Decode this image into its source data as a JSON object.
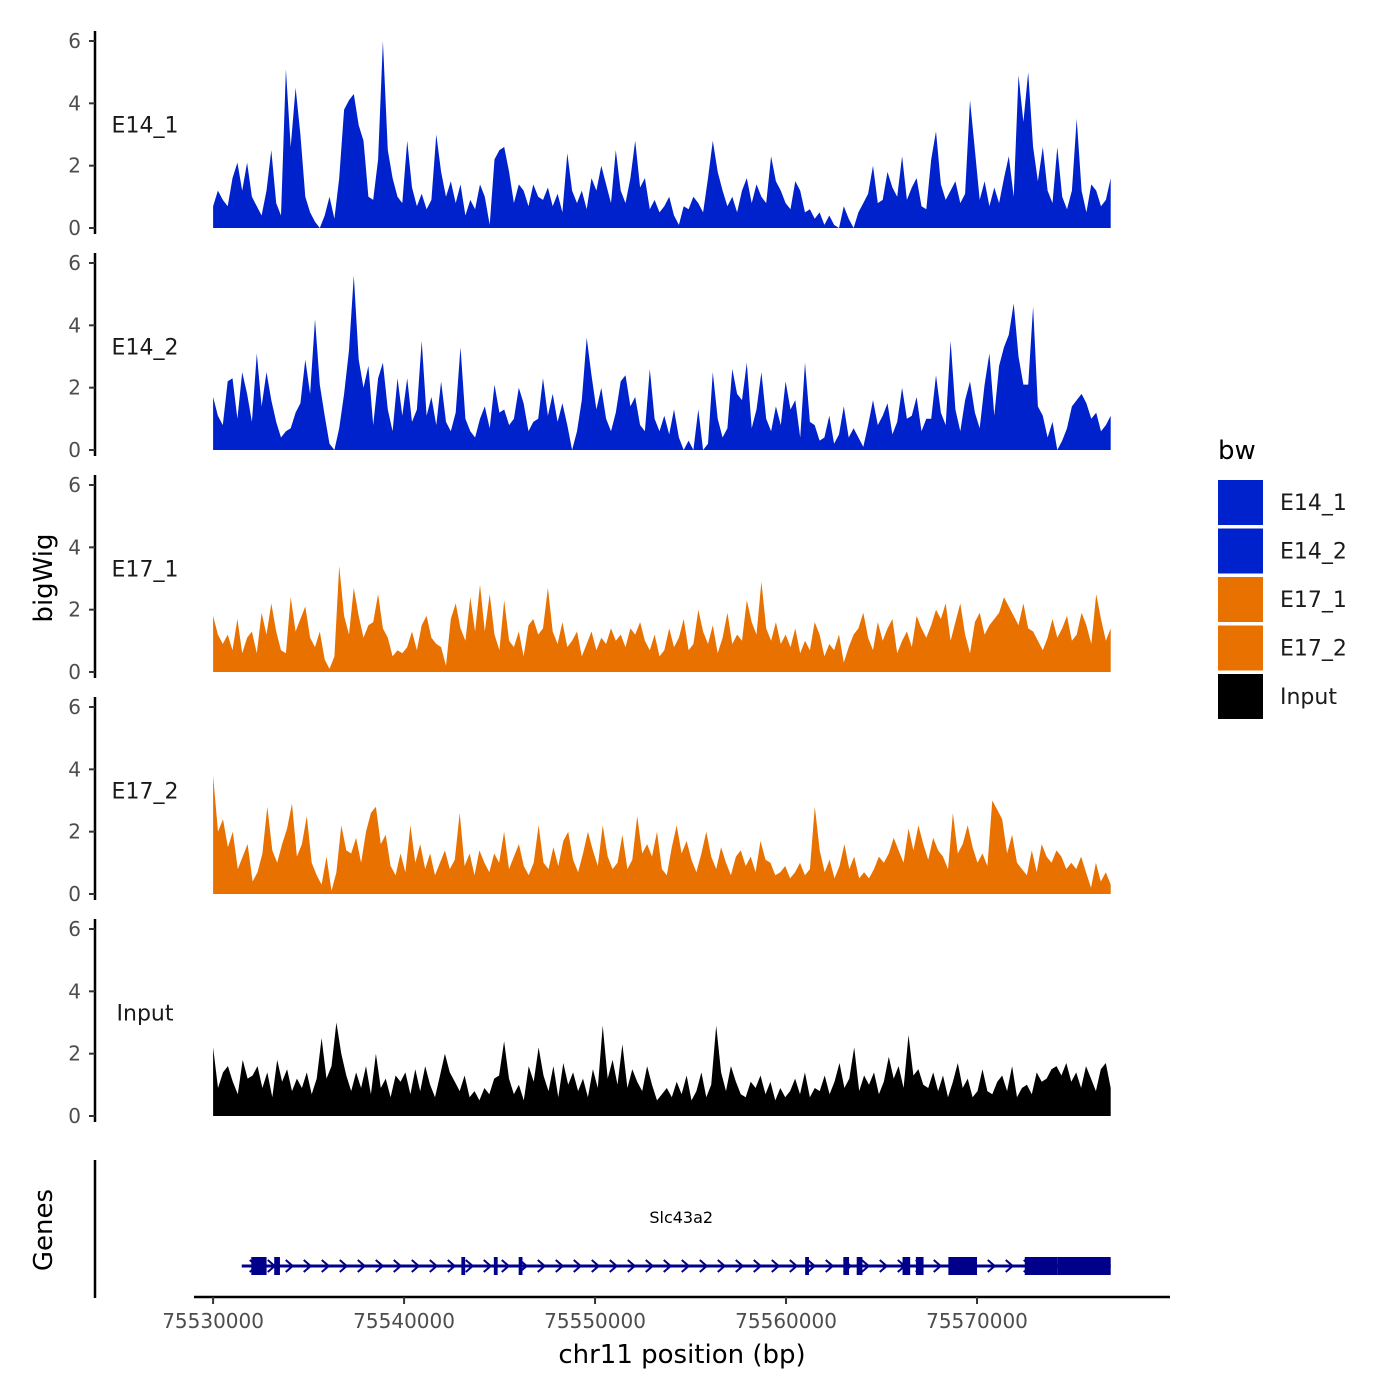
{
  "chart_data": {
    "type": "area",
    "ylabel": "bigWig",
    "xlabel": "chr11 position (bp)",
    "genes_label": "Genes",
    "ylim": [
      0,
      6
    ],
    "y_ticks": [
      0,
      2,
      4,
      6
    ],
    "x_range": [
      75530000,
      75577000
    ],
    "x_axis_range": [
      75529000,
      75580000
    ],
    "x_ticks": [
      75530000,
      75540000,
      75550000,
      75560000,
      75570000
    ],
    "x_tick_labels": [
      "75530000",
      "75540000",
      "75550000",
      "75560000",
      "75570000"
    ],
    "legend": {
      "title": "bw",
      "items": [
        {
          "label": "E14_1",
          "color": "#0022cc"
        },
        {
          "label": "E14_2",
          "color": "#0022cc"
        },
        {
          "label": "E17_1",
          "color": "#e87100"
        },
        {
          "label": "E17_2",
          "color": "#e87100"
        },
        {
          "label": "Input",
          "color": "#000000"
        }
      ]
    },
    "series": [
      {
        "name": "E14_1",
        "color": "#0022cc",
        "values": [
          0.7,
          1.2,
          0.9,
          0.7,
          1.6,
          2.1,
          1.2,
          2.1,
          1.0,
          0.7,
          0.4,
          1.2,
          2.5,
          0.8,
          0.4,
          5.1,
          2.6,
          4.5,
          3.0,
          1.0,
          0.5,
          0.2,
          0.0,
          0.4,
          1.0,
          0.3,
          1.6,
          3.8,
          4.1,
          4.3,
          3.3,
          2.8,
          1.0,
          0.9,
          2.2,
          6.0,
          2.5,
          1.6,
          1.0,
          0.8,
          2.8,
          1.3,
          0.7,
          1.1,
          0.6,
          0.9,
          3.0,
          1.8,
          1.0,
          1.5,
          0.8,
          1.4,
          0.4,
          0.9,
          0.6,
          1.4,
          1.0,
          0.1,
          2.2,
          2.5,
          2.6,
          1.8,
          0.8,
          1.4,
          1.2,
          0.7,
          1.4,
          1.0,
          0.9,
          1.3,
          0.7,
          1.1,
          0.5,
          2.4,
          1.2,
          0.8,
          1.2,
          0.6,
          1.6,
          1.2,
          2.0,
          1.4,
          0.8,
          2.5,
          1.2,
          0.8,
          1.6,
          2.8,
          1.3,
          1.6,
          0.6,
          0.9,
          0.5,
          0.7,
          1.0,
          0.4,
          0.1,
          0.7,
          0.6,
          1.0,
          0.8,
          0.5,
          1.6,
          2.8,
          1.8,
          1.2,
          0.7,
          1.0,
          0.5,
          1.2,
          1.6,
          0.8,
          1.4,
          1.0,
          0.8,
          2.3,
          1.5,
          1.2,
          0.8,
          0.6,
          1.5,
          1.2,
          0.5,
          0.6,
          0.3,
          0.5,
          0.1,
          0.4,
          0.1,
          0.0,
          0.7,
          0.3,
          0.0,
          0.5,
          0.8,
          1.1,
          2.0,
          0.8,
          0.9,
          1.8,
          1.3,
          1.0,
          2.3,
          0.9,
          1.3,
          1.6,
          0.7,
          0.6,
          2.2,
          3.1,
          1.4,
          0.9,
          1.2,
          1.5,
          0.8,
          1.1,
          4.1,
          2.5,
          0.9,
          1.5,
          0.7,
          1.3,
          0.8,
          1.6,
          2.3,
          1.0,
          4.9,
          3.4,
          5.0,
          2.6,
          1.5,
          2.6,
          1.2,
          0.8,
          2.6,
          1.0,
          0.6,
          1.2,
          3.5,
          1.2,
          0.5,
          1.4,
          1.2,
          0.7,
          0.9,
          1.6
        ]
      },
      {
        "name": "E14_2",
        "color": "#0022cc",
        "values": [
          1.7,
          1.1,
          0.8,
          2.2,
          2.3,
          1.0,
          2.5,
          1.8,
          0.9,
          3.1,
          1.4,
          2.5,
          1.6,
          0.9,
          0.4,
          0.6,
          0.7,
          1.2,
          1.5,
          2.9,
          1.8,
          4.2,
          2.1,
          1.1,
          0.2,
          0.0,
          0.7,
          1.8,
          3.2,
          5.6,
          2.9,
          2.0,
          2.7,
          0.8,
          2.3,
          2.8,
          1.3,
          0.6,
          2.3,
          1.1,
          2.3,
          0.9,
          1.3,
          3.5,
          1.1,
          1.7,
          0.8,
          2.2,
          0.9,
          0.6,
          1.2,
          3.3,
          1.0,
          0.6,
          0.4,
          1.0,
          1.4,
          0.7,
          2.1,
          1.2,
          1.3,
          0.8,
          1.0,
          2.0,
          1.5,
          0.6,
          0.9,
          1.0,
          2.3,
          1.1,
          1.8,
          0.9,
          1.5,
          0.8,
          0.0,
          0.6,
          1.6,
          3.6,
          2.4,
          1.3,
          2.0,
          1.0,
          0.6,
          1.2,
          2.2,
          2.4,
          1.4,
          1.7,
          0.8,
          0.6,
          2.6,
          1.0,
          0.6,
          1.1,
          0.5,
          1.3,
          0.4,
          0.0,
          0.3,
          0.0,
          1.3,
          0.0,
          0.2,
          2.5,
          1.0,
          0.4,
          0.7,
          2.6,
          1.8,
          1.6,
          2.8,
          0.7,
          1.3,
          2.5,
          1.0,
          0.6,
          1.4,
          0.8,
          2.2,
          1.3,
          1.6,
          0.4,
          2.8,
          0.9,
          0.8,
          0.3,
          0.4,
          1.1,
          0.2,
          0.5,
          1.4,
          0.4,
          0.7,
          0.4,
          0.1,
          0.8,
          1.6,
          0.8,
          1.1,
          1.5,
          0.5,
          0.9,
          2.0,
          1.0,
          1.1,
          1.7,
          0.6,
          1.0,
          1.0,
          2.4,
          1.2,
          0.8,
          3.5,
          1.3,
          0.6,
          1.6,
          2.2,
          1.2,
          0.7,
          2.1,
          3.1,
          1.1,
          2.7,
          3.3,
          3.7,
          4.7,
          3.0,
          2.1,
          2.1,
          4.6,
          1.4,
          1.1,
          0.4,
          0.9,
          0.0,
          0.3,
          0.7,
          1.4,
          1.6,
          1.8,
          1.5,
          1.0,
          1.2,
          0.6,
          0.8,
          1.1
        ]
      },
      {
        "name": "E17_1",
        "color": "#e87100",
        "values": [
          1.8,
          1.2,
          0.9,
          1.2,
          0.7,
          1.7,
          0.6,
          1.1,
          1.3,
          0.6,
          1.9,
          1.2,
          2.2,
          1.3,
          0.7,
          0.6,
          2.4,
          1.3,
          1.7,
          2.1,
          1.1,
          0.8,
          1.3,
          0.4,
          0.1,
          0.5,
          3.4,
          1.8,
          1.2,
          2.7,
          1.8,
          1.1,
          1.5,
          1.6,
          2.5,
          1.4,
          1.1,
          0.5,
          0.7,
          0.6,
          0.8,
          1.3,
          0.7,
          1.5,
          1.8,
          1.1,
          0.9,
          0.8,
          0.2,
          1.7,
          2.2,
          1.4,
          1.0,
          2.4,
          1.3,
          2.8,
          1.3,
          2.5,
          1.2,
          0.7,
          2.3,
          1.0,
          0.8,
          1.3,
          0.5,
          1.5,
          1.7,
          1.2,
          1.4,
          2.7,
          1.3,
          0.9,
          1.6,
          0.8,
          1.0,
          1.3,
          0.5,
          0.9,
          1.3,
          0.7,
          1.1,
          0.9,
          1.4,
          1.0,
          1.2,
          0.8,
          1.4,
          1.2,
          1.6,
          1.0,
          0.7,
          1.2,
          0.5,
          0.7,
          1.4,
          0.8,
          1.1,
          1.7,
          0.7,
          0.9,
          2.0,
          1.3,
          0.9,
          1.5,
          0.6,
          1.1,
          1.9,
          0.9,
          1.2,
          1.0,
          2.3,
          1.6,
          1.2,
          2.9,
          1.4,
          1.0,
          1.6,
          0.9,
          1.2,
          0.8,
          1.4,
          0.6,
          1.0,
          0.7,
          1.6,
          1.2,
          0.5,
          0.9,
          0.7,
          1.2,
          0.3,
          0.8,
          1.2,
          1.4,
          1.9,
          1.1,
          0.7,
          1.6,
          1.0,
          1.4,
          1.7,
          0.6,
          1.0,
          1.3,
          0.8,
          1.8,
          1.4,
          1.1,
          1.5,
          2.0,
          1.7,
          2.2,
          1.0,
          1.6,
          2.2,
          1.2,
          0.6,
          1.6,
          1.9,
          1.2,
          1.5,
          1.7,
          1.9,
          2.4,
          2.1,
          1.8,
          1.5,
          2.2,
          1.4,
          1.3,
          1.0,
          0.7,
          1.1,
          1.7,
          1.1,
          1.4,
          1.8,
          1.0,
          1.2,
          1.9,
          1.5,
          0.9,
          2.5,
          1.7,
          1.0,
          1.4
        ]
      },
      {
        "name": "E17_2",
        "color": "#e87100",
        "values": [
          3.8,
          2.0,
          2.4,
          1.5,
          2.0,
          0.8,
          1.2,
          1.6,
          0.4,
          0.7,
          1.3,
          2.8,
          1.4,
          1.0,
          1.6,
          2.1,
          2.9,
          1.2,
          1.6,
          2.5,
          1.0,
          0.6,
          0.3,
          1.2,
          0.1,
          0.7,
          2.2,
          1.4,
          1.3,
          1.8,
          1.0,
          2.0,
          2.6,
          2.8,
          1.6,
          1.9,
          0.9,
          0.6,
          1.3,
          0.7,
          2.2,
          1.0,
          1.6,
          0.8,
          1.3,
          0.6,
          1.0,
          1.4,
          0.8,
          1.1,
          2.6,
          0.9,
          1.3,
          0.6,
          1.4,
          1.0,
          0.7,
          1.3,
          1.0,
          2.0,
          0.8,
          1.2,
          1.6,
          0.9,
          0.6,
          1.0,
          2.2,
          1.0,
          0.8,
          1.5,
          0.9,
          1.7,
          2.0,
          1.1,
          0.7,
          1.3,
          2.0,
          1.4,
          0.9,
          2.2,
          1.2,
          0.8,
          1.0,
          1.9,
          0.8,
          1.1,
          2.5,
          1.3,
          1.6,
          1.2,
          2.0,
          0.8,
          0.6,
          1.5,
          2.2,
          1.3,
          1.7,
          1.1,
          0.7,
          1.3,
          2.0,
          1.2,
          0.8,
          1.5,
          1.0,
          0.6,
          1.2,
          1.4,
          0.9,
          1.2,
          0.7,
          1.7,
          1.1,
          1.0,
          0.6,
          0.7,
          0.9,
          0.5,
          0.7,
          1.0,
          0.6,
          0.8,
          2.8,
          1.4,
          0.7,
          1.1,
          0.5,
          0.9,
          1.6,
          0.8,
          1.2,
          0.5,
          0.7,
          0.5,
          0.8,
          1.2,
          1.0,
          1.3,
          1.8,
          1.4,
          1.0,
          2.1,
          1.4,
          2.2,
          1.6,
          1.1,
          1.8,
          1.4,
          1.2,
          0.8,
          2.6,
          1.3,
          1.6,
          2.2,
          1.5,
          1.0,
          1.3,
          0.9,
          3.0,
          2.7,
          2.4,
          1.3,
          1.9,
          1.0,
          0.8,
          0.6,
          1.4,
          0.7,
          1.6,
          1.2,
          1.0,
          1.4,
          1.2,
          0.8,
          1.0,
          0.8,
          1.2,
          0.7,
          0.2,
          1.0,
          0.4,
          0.7,
          0.3
        ]
      },
      {
        "name": "Input",
        "color": "#000000",
        "values": [
          2.2,
          0.9,
          1.4,
          1.6,
          1.1,
          0.7,
          1.8,
          1.2,
          1.3,
          1.6,
          0.9,
          1.4,
          0.6,
          1.8,
          1.1,
          1.5,
          0.8,
          1.2,
          0.9,
          1.4,
          0.7,
          1.2,
          2.5,
          1.2,
          1.6,
          3.0,
          2.0,
          1.3,
          0.8,
          1.4,
          0.9,
          1.6,
          0.7,
          2.0,
          0.9,
          1.2,
          0.6,
          1.3,
          1.1,
          1.4,
          0.7,
          1.5,
          0.8,
          1.6,
          1.0,
          0.6,
          1.3,
          2.0,
          1.4,
          1.1,
          0.8,
          1.3,
          0.6,
          0.8,
          0.5,
          0.9,
          0.7,
          1.2,
          1.3,
          2.4,
          1.2,
          0.7,
          1.0,
          0.5,
          1.6,
          1.1,
          2.2,
          1.3,
          0.8,
          1.6,
          0.6,
          1.7,
          1.0,
          1.4,
          0.8,
          1.2,
          0.6,
          1.5,
          0.9,
          2.9,
          1.2,
          1.8,
          1.0,
          2.3,
          0.9,
          1.5,
          1.1,
          0.8,
          1.6,
          1.0,
          0.5,
          0.7,
          0.9,
          0.6,
          1.1,
          0.7,
          1.3,
          0.5,
          0.8,
          1.4,
          0.6,
          1.0,
          2.9,
          1.4,
          0.8,
          1.6,
          1.1,
          0.7,
          0.6,
          1.1,
          0.9,
          1.3,
          0.7,
          1.1,
          0.5,
          0.9,
          0.6,
          0.8,
          1.2,
          0.7,
          1.4,
          0.6,
          0.9,
          0.8,
          1.3,
          0.7,
          1.1,
          1.7,
          0.9,
          1.2,
          2.2,
          0.8,
          1.3,
          1.0,
          1.4,
          0.7,
          1.1,
          1.9,
          1.2,
          1.6,
          0.9,
          2.6,
          1.3,
          1.5,
          1.0,
          0.9,
          1.4,
          0.8,
          1.3,
          0.6,
          1.1,
          1.7,
          0.9,
          1.2,
          0.6,
          0.8,
          1.5,
          0.8,
          0.7,
          1.1,
          1.3,
          0.8,
          1.6,
          0.6,
          0.9,
          1.0,
          0.7,
          1.4,
          1.1,
          1.2,
          1.5,
          1.6,
          1.3,
          1.7,
          1.1,
          1.4,
          0.9,
          1.6,
          1.2,
          0.8,
          1.5,
          1.7,
          0.9
        ]
      }
    ],
    "gene": {
      "name": "Slc43a2",
      "start": 75531500,
      "end": 75577000,
      "strand": "+",
      "exons": [
        [
          75532000,
          75532800
        ],
        [
          75533200,
          75533500
        ],
        [
          75543000,
          75543200
        ],
        [
          75544700,
          75544900
        ],
        [
          75546000,
          75546200
        ],
        [
          75561000,
          75561200
        ],
        [
          75563000,
          75563300
        ],
        [
          75563700,
          75564000
        ],
        [
          75566100,
          75566500
        ],
        [
          75566800,
          75567200
        ],
        [
          75568500,
          75570000
        ],
        [
          75572500,
          75574200
        ],
        [
          75574200,
          75577000
        ]
      ]
    }
  }
}
